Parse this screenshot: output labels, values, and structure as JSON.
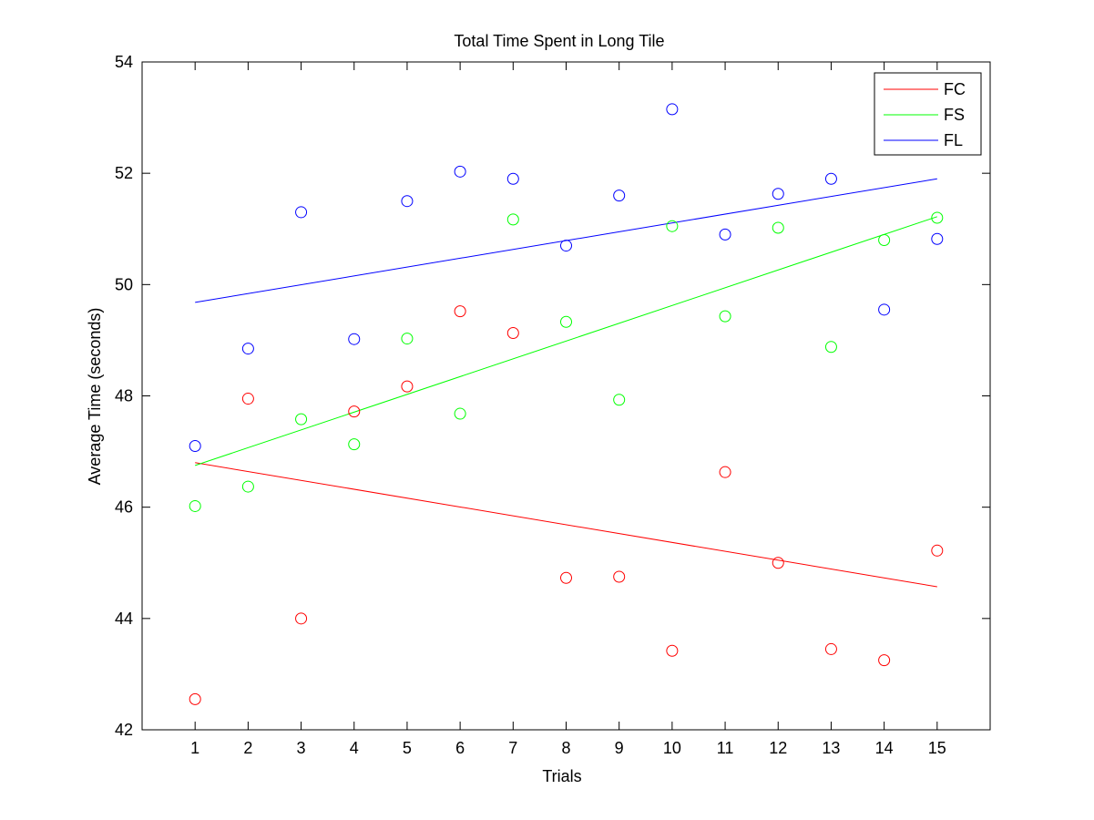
{
  "chart_data": {
    "type": "scatter",
    "title": "Total Time Spent in Long Tile",
    "xlabel": "Trials",
    "ylabel": "Average Time (seconds)",
    "xlim": [
      0,
      16
    ],
    "ylim": [
      42,
      54
    ],
    "xticks": [
      1,
      2,
      3,
      4,
      5,
      6,
      7,
      8,
      9,
      10,
      11,
      12,
      13,
      14,
      15
    ],
    "yticks": [
      42,
      44,
      46,
      48,
      50,
      52,
      54
    ],
    "grid": false,
    "legend_position": "top-right",
    "x": [
      1,
      2,
      3,
      4,
      5,
      6,
      7,
      8,
      9,
      10,
      11,
      12,
      13,
      14,
      15
    ],
    "series": [
      {
        "name": "FC",
        "color": "#ff0000",
        "values": [
          42.55,
          47.95,
          44.0,
          47.72,
          48.17,
          49.52,
          49.13,
          44.73,
          44.75,
          43.42,
          46.63,
          45.0,
          43.45,
          43.25,
          45.22
        ],
        "fit": [
          46.8,
          44.57
        ]
      },
      {
        "name": "FS",
        "color": "#00ff00",
        "values": [
          46.02,
          46.37,
          47.58,
          47.13,
          49.03,
          47.68,
          51.17,
          49.33,
          47.93,
          51.05,
          49.43,
          51.02,
          48.88,
          50.8,
          51.2
        ],
        "fit": [
          46.75,
          51.22
        ]
      },
      {
        "name": "FL",
        "color": "#0000ff",
        "values": [
          47.1,
          48.85,
          51.3,
          49.02,
          51.5,
          52.03,
          51.9,
          50.7,
          51.6,
          53.15,
          50.9,
          51.63,
          51.9,
          49.55,
          50.82
        ],
        "fit": [
          49.68,
          51.9
        ]
      }
    ]
  }
}
